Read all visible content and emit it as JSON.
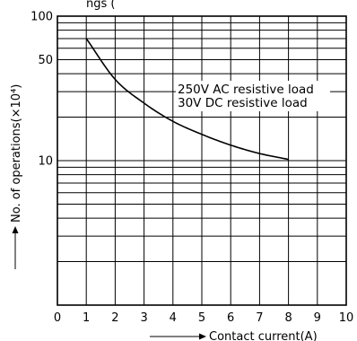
{
  "chart_data": {
    "type": "line",
    "xlabel": "Contact current(A)",
    "ylabel": "No. of operations(×10⁴)",
    "title_fragment": "ngs (",
    "x_ticks": [
      "0",
      "1",
      "2",
      "3",
      "4",
      "5",
      "6",
      "7",
      "8",
      "9",
      "10"
    ],
    "y_ticks": [
      "100",
      "50",
      "10"
    ],
    "xlim": [
      0,
      10
    ],
    "ylim": [
      1,
      100
    ],
    "y_scale": "log",
    "grid": true,
    "series": [
      {
        "x": [
          1,
          2,
          3,
          4,
          5,
          6,
          7,
          8
        ],
        "y": [
          70,
          36.5,
          25,
          18.7,
          15.2,
          12.8,
          11.2,
          10.2
        ]
      }
    ],
    "annotations": [
      "250V AC resistive load",
      "30V DC resistive load"
    ]
  }
}
